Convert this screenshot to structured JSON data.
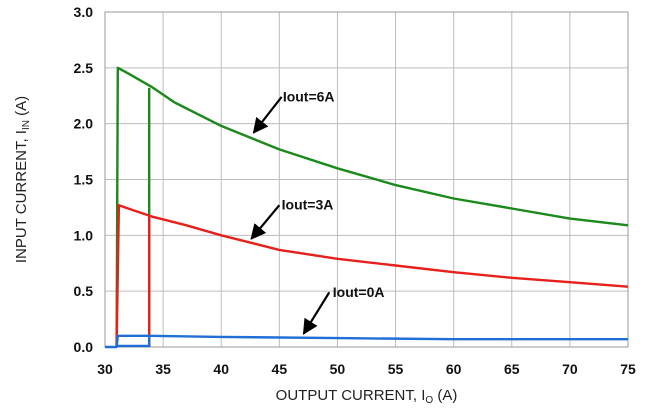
{
  "chart_data": {
    "type": "line",
    "xlabel": "OUTPUT CURRENT, I",
    "xlabel_sub": "O",
    "xlabel_unit": " (A)",
    "ylabel": "INPUT CURRENT, I",
    "ylabel_sub": "IN",
    "ylabel_unit": " (A)",
    "xlim": [
      30,
      75
    ],
    "ylim": [
      0,
      3.0
    ],
    "xticks": [
      "30",
      "35",
      "40",
      "45",
      "50",
      "55",
      "60",
      "65",
      "70",
      "75"
    ],
    "yticks": [
      "0.0",
      "0.5",
      "1.0",
      "1.5",
      "2.0",
      "2.5",
      "3.0"
    ],
    "grid": true,
    "series": [
      {
        "name": "Iout=6A",
        "color": "#1a8a1a",
        "points": [
          [
            31,
            0
          ],
          [
            31.1,
            2.5
          ],
          [
            32,
            2.45
          ],
          [
            34,
            2.33
          ],
          [
            36,
            2.19
          ],
          [
            40,
            1.98
          ],
          [
            45,
            1.77
          ],
          [
            50,
            1.6
          ],
          [
            55,
            1.45
          ],
          [
            60,
            1.33
          ],
          [
            65,
            1.24
          ],
          [
            70,
            1.15
          ],
          [
            75,
            1.09
          ]
        ],
        "branch": [
          [
            33.8,
            2.32
          ],
          [
            33.8,
            0
          ]
        ]
      },
      {
        "name": "Iout=3A",
        "color": "#e8201c",
        "points": [
          [
            31,
            0
          ],
          [
            31.2,
            1.27
          ],
          [
            32,
            1.24
          ],
          [
            34,
            1.17
          ],
          [
            37,
            1.09
          ],
          [
            40,
            1.0
          ],
          [
            45,
            0.87
          ],
          [
            50,
            0.79
          ],
          [
            55,
            0.73
          ],
          [
            60,
            0.67
          ],
          [
            65,
            0.62
          ],
          [
            70,
            0.58
          ],
          [
            75,
            0.54
          ]
        ],
        "branch": [
          [
            33.8,
            1.17
          ],
          [
            33.8,
            0
          ]
        ]
      },
      {
        "name": "Iout=0A",
        "color": "#1f6fd6",
        "points": [
          [
            30,
            0
          ],
          [
            31,
            0
          ],
          [
            31.1,
            0.1
          ],
          [
            33.8,
            0.1
          ],
          [
            40,
            0.09
          ],
          [
            50,
            0.08
          ],
          [
            60,
            0.07
          ],
          [
            75,
            0.07
          ]
        ],
        "branch": [
          [
            33.8,
            0.1
          ],
          [
            33.8,
            0.01
          ],
          [
            31,
            0.01
          ]
        ]
      }
    ],
    "annotations": [
      {
        "text": "Iout=6A",
        "arrow_from": [
          45.2,
          2.24
        ],
        "arrow_to": [
          42.8,
          1.92
        ],
        "label_at": [
          45.3,
          2.2
        ]
      },
      {
        "text": "Iout=3A",
        "arrow_from": [
          45.0,
          1.27
        ],
        "arrow_to": [
          42.6,
          0.97
        ],
        "label_at": [
          45.2,
          1.23
        ]
      },
      {
        "text": "Iout=0A",
        "arrow_from": [
          49.3,
          0.49
        ],
        "arrow_to": [
          47.1,
          0.12
        ],
        "label_at": [
          49.6,
          0.45
        ]
      }
    ]
  }
}
